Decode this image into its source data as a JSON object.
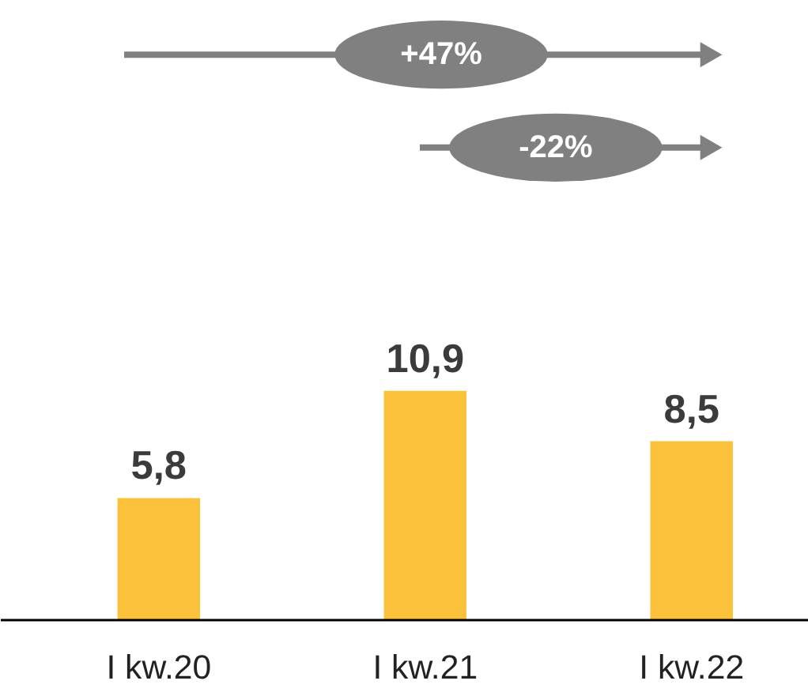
{
  "chart_data": {
    "type": "bar",
    "categories": [
      "I kw.20",
      "I kw.21",
      "I kw.22"
    ],
    "values": [
      5.8,
      10.9,
      8.5
    ],
    "value_labels": [
      "5,8",
      "10,9",
      "8,5"
    ],
    "color": "#fbc13b",
    "annotations": [
      "+47%",
      "-22%"
    ],
    "grid": false
  }
}
